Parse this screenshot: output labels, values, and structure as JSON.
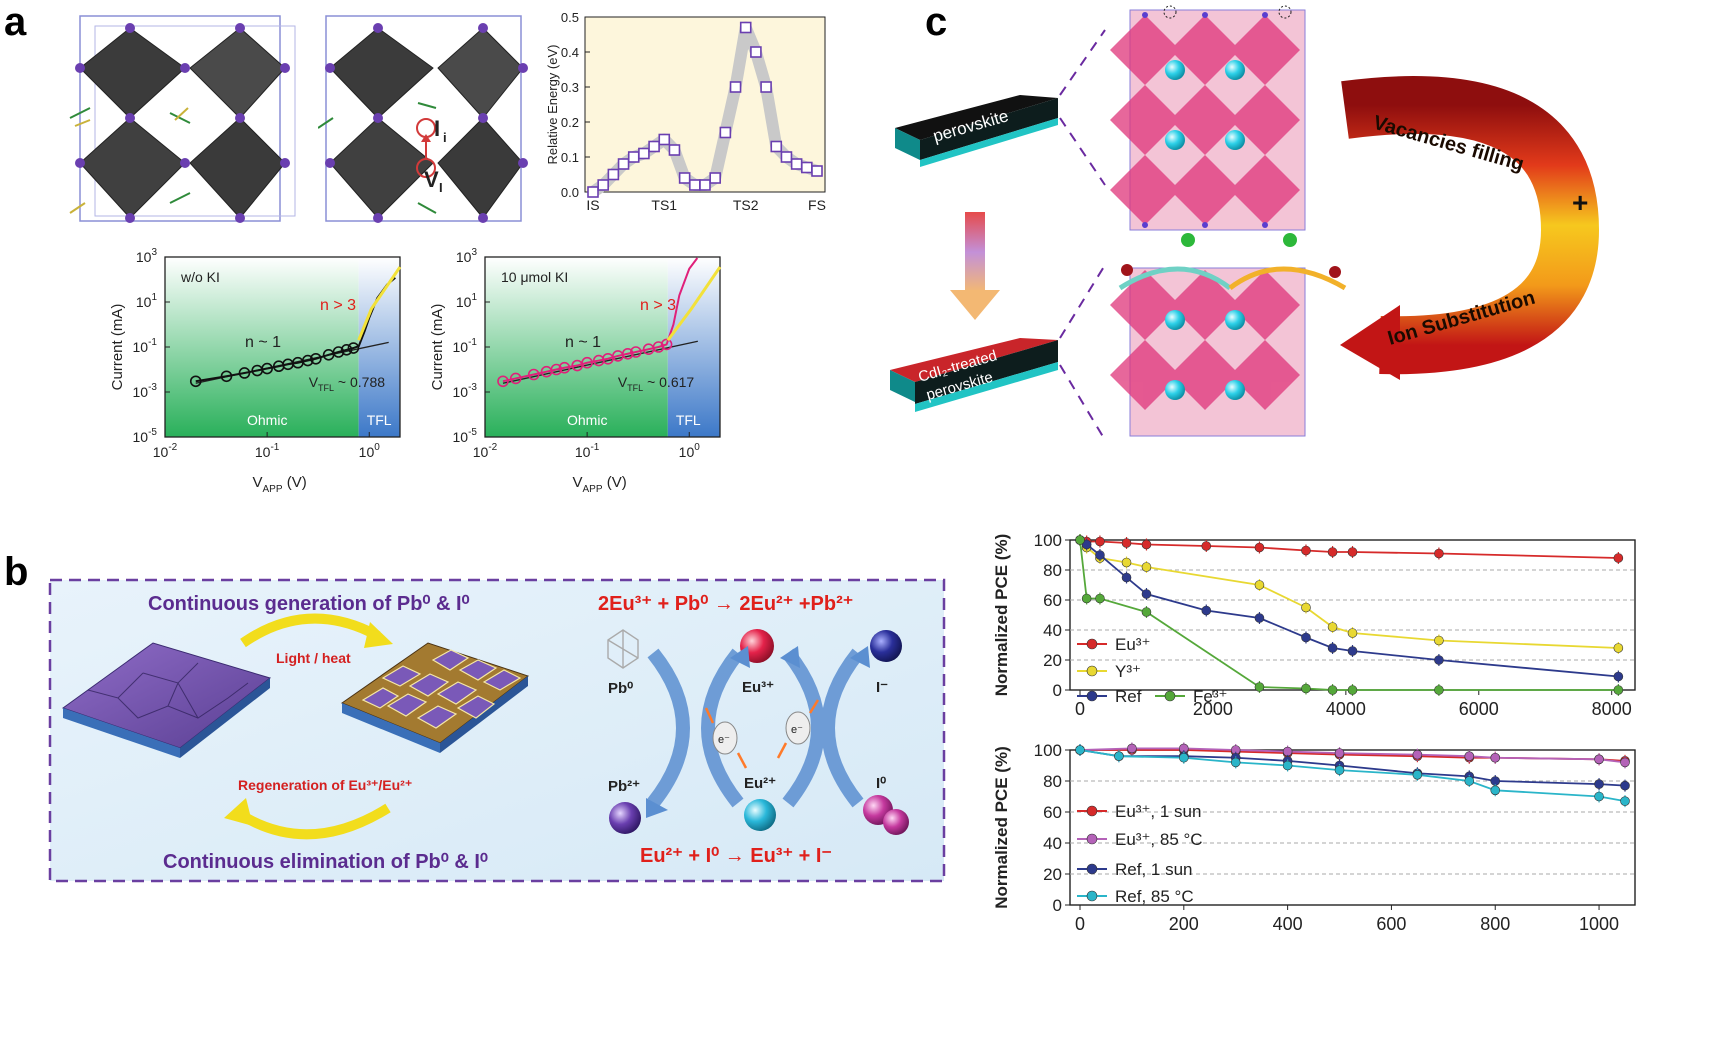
{
  "panels": {
    "a": {
      "label": "a",
      "energy": {
        "ylabel": "Relative Energy (eV)",
        "xticks": [
          "IS",
          "TS1",
          "TS2",
          "FS"
        ],
        "yticks": [
          "0.0",
          "0.1",
          "0.2",
          "0.3",
          "0.4",
          "0.5"
        ],
        "marker_labels": {
          "interstitial": "I",
          "interstitial_sub": "i",
          "vacancy": "V",
          "vacancy_sub": "I"
        }
      },
      "sclc_left": {
        "legend": "w/o KI",
        "n_ohmic": "n ~ 1",
        "n_tfl": "n > 3",
        "vtfl_prefix": "V",
        "vtfl_sub": "TFL",
        "vtfl_value": "~ 0.788",
        "ohmic_label": "Ohmic",
        "tfl_label": "TFL",
        "ylabel": "Current (mA)",
        "xlabel": "V",
        "xlabel_sub": "APP",
        "xlabel_unit": " (V)"
      },
      "sclc_right": {
        "legend": "10 μmol KI",
        "n_ohmic": "n ~ 1",
        "n_tfl": "n > 3",
        "vtfl_prefix": "V",
        "vtfl_sub": "TFL",
        "vtfl_value": "~ 0.617",
        "ohmic_label": "Ohmic",
        "tfl_label": "TFL",
        "ylabel": "Current (mA)",
        "xlabel": "V",
        "xlabel_sub": "APP",
        "xlabel_unit": " (V)"
      }
    },
    "b": {
      "label": "b",
      "title_top": "Continuous generation of Pb⁰ & I⁰",
      "title_bottom": "Continuous elimination of Pb⁰ & I⁰",
      "arrow_top": "Light / heat",
      "arrow_bottom": "Regeneration of Eu³⁺/Eu²⁺",
      "eq_top": "2Eu³⁺ + Pb⁰ → 2Eu²⁺ +Pb²⁺",
      "eq_bottom": "Eu²⁺ + I⁰ → Eu³⁺ + I⁻",
      "species": {
        "pb0": "Pb⁰",
        "eu3": "Eu³⁺",
        "iminus": "I⁻",
        "pb2": "Pb²⁺",
        "eu2": "Eu²⁺",
        "i0": "I⁰",
        "electron": "e⁻"
      },
      "colors": {
        "title": "#5b2c8f",
        "equation": "#e0201b",
        "arrow": "#f2dd1c"
      }
    },
    "c": {
      "label": "c",
      "film_top": "perovskite",
      "film_bottom_line1": "CdI₂-treated",
      "film_bottom_line2": "perovskite",
      "arrow_top": "Vacancies filling",
      "arrow_plus": "+",
      "arrow_bottom": "Ion Substitution"
    }
  },
  "chart_data": [
    {
      "type": "line",
      "panel": "a-energy",
      "ylabel": "Relative Energy (eV)",
      "xticks": [
        "IS",
        "TS1",
        "TS2",
        "FS"
      ],
      "ylim": [
        0,
        0.5
      ],
      "series": [
        {
          "values": [
            0.0,
            0.02,
            0.05,
            0.08,
            0.1,
            0.11,
            0.13,
            0.15,
            0.12,
            0.04,
            0.02,
            0.02,
            0.04,
            0.17,
            0.3,
            0.47,
            0.4,
            0.3,
            0.13,
            0.1,
            0.08,
            0.07,
            0.06
          ]
        }
      ]
    },
    {
      "type": "scatter",
      "panel": "a-sclc-left",
      "xlabel": "V_APP (V)",
      "ylabel": "Current (mA)",
      "xscale": "log",
      "yscale": "log",
      "xlim": [
        0.01,
        2
      ],
      "ylim": [
        1e-05,
        1000
      ],
      "legend": "w/o KI",
      "vtfl": 0.788,
      "series": [
        {
          "x": [
            0.02,
            0.04,
            0.06,
            0.08,
            0.1,
            0.13,
            0.16,
            0.2,
            0.25,
            0.3,
            0.4,
            0.5,
            0.6,
            0.7,
            0.79,
            0.9,
            1.0,
            1.2,
            1.5,
            1.8
          ],
          "y": [
            0.003,
            0.005,
            0.007,
            0.009,
            0.011,
            0.014,
            0.017,
            0.02,
            0.025,
            0.03,
            0.045,
            0.06,
            0.075,
            0.09,
            0.11,
            0.5,
            2,
            15,
            60,
            120
          ]
        }
      ]
    },
    {
      "type": "scatter",
      "panel": "a-sclc-right",
      "xlabel": "V_APP (V)",
      "ylabel": "Current (mA)",
      "xscale": "log",
      "yscale": "log",
      "xlim": [
        0.01,
        2
      ],
      "ylim": [
        1e-05,
        1000
      ],
      "legend": "10 μmol KI",
      "vtfl": 0.617,
      "series": [
        {
          "x": [
            0.015,
            0.02,
            0.03,
            0.04,
            0.05,
            0.06,
            0.08,
            0.1,
            0.13,
            0.16,
            0.2,
            0.25,
            0.3,
            0.4,
            0.5,
            0.6,
            0.7,
            0.8,
            1.0,
            1.2
          ],
          "y": [
            0.003,
            0.004,
            0.006,
            0.008,
            0.01,
            0.012,
            0.015,
            0.02,
            0.025,
            0.03,
            0.04,
            0.05,
            0.06,
            0.08,
            0.1,
            0.13,
            1,
            20,
            300,
            900
          ]
        }
      ]
    },
    {
      "type": "line",
      "panel": "b-top",
      "ylabel": "Normalized  PCE (%)",
      "xlim": [
        0,
        8200
      ],
      "ylim": [
        0,
        100
      ],
      "xticks": [
        0,
        2000,
        4000,
        6000,
        8000
      ],
      "yticks": [
        0,
        20,
        40,
        60,
        80,
        100
      ],
      "series": [
        {
          "name": "Eu³⁺",
          "color": "#d62a2a",
          "x": [
            0,
            100,
            300,
            700,
            1000,
            1900,
            2700,
            3400,
            3800,
            4100,
            5400,
            8100
          ],
          "y": [
            100,
            99,
            99,
            98,
            97,
            96,
            95,
            93,
            92,
            92,
            91,
            88
          ]
        },
        {
          "name": "Y³⁺",
          "color": "#e8d832",
          "x": [
            0,
            100,
            300,
            700,
            1000,
            2700,
            3400,
            3800,
            4100,
            5400,
            8100
          ],
          "y": [
            100,
            95,
            88,
            85,
            82,
            70,
            55,
            42,
            38,
            33,
            28
          ]
        },
        {
          "name": "Ref",
          "color": "#2d3a8c",
          "x": [
            0,
            100,
            300,
            700,
            1000,
            1900,
            2700,
            3400,
            3800,
            4100,
            5400,
            8100
          ],
          "y": [
            100,
            97,
            90,
            75,
            64,
            53,
            48,
            35,
            28,
            26,
            20,
            9
          ]
        },
        {
          "name": "Fe³⁺",
          "color": "#55a83a",
          "x": [
            0,
            100,
            300,
            1000,
            2700,
            3400,
            3800,
            4100,
            5400,
            8100
          ],
          "y": [
            100,
            61,
            61,
            52,
            2,
            1,
            0,
            0,
            0,
            0
          ]
        }
      ]
    },
    {
      "type": "line",
      "panel": "b-bottom",
      "ylabel": "Normalized  PCE (%)",
      "xlim": [
        0,
        1050
      ],
      "ylim": [
        0,
        100
      ],
      "xticks": [
        0,
        200,
        400,
        600,
        800,
        1000
      ],
      "yticks": [
        0,
        20,
        40,
        60,
        80,
        100
      ],
      "series": [
        {
          "name": "Eu³⁺, 1 sun",
          "color": "#d62a2a",
          "x": [
            0,
            100,
            200,
            300,
            400,
            500,
            650,
            750,
            800,
            1000,
            1050
          ],
          "y": [
            100,
            100,
            100,
            99,
            98,
            97,
            96,
            95,
            95,
            94,
            93
          ]
        },
        {
          "name": "Eu³⁺, 85 °C",
          "color": "#b462b8",
          "x": [
            0,
            100,
            200,
            300,
            400,
            500,
            650,
            750,
            800,
            1000,
            1050
          ],
          "y": [
            100,
            101,
            101,
            100,
            99,
            98,
            97,
            96,
            95,
            94,
            92
          ]
        },
        {
          "name": "Ref, 1 sun",
          "color": "#2d3a8c",
          "x": [
            0,
            75,
            200,
            300,
            400,
            500,
            650,
            750,
            800,
            1000,
            1050
          ],
          "y": [
            100,
            96,
            96,
            95,
            93,
            90,
            85,
            83,
            80,
            78,
            77
          ]
        },
        {
          "name": "Ref, 85 °C",
          "color": "#2ab5c9",
          "x": [
            0,
            75,
            200,
            300,
            400,
            500,
            650,
            750,
            800,
            1000,
            1050
          ],
          "y": [
            100,
            96,
            95,
            92,
            90,
            87,
            84,
            80,
            74,
            70,
            67
          ]
        }
      ]
    }
  ]
}
